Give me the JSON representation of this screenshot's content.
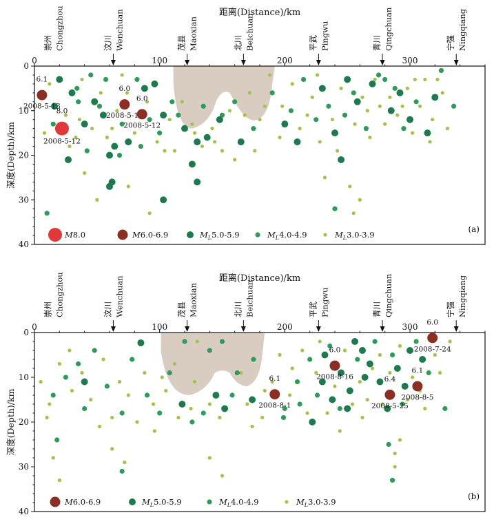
{
  "figure": {
    "colors": {
      "m8": "#e0393b",
      "m6": "#8b2e24",
      "ml5": "#1e7a4e",
      "ml4": "#2f9a5a",
      "ml3": "#a3c24c",
      "shade": "#d9cdc1",
      "axis": "#111111"
    }
  },
  "chart_data": [
    {
      "id": "a",
      "type": "scatter",
      "panel_label": "(a)",
      "title": "距离(Distance)/km",
      "xlabel": "距离(Distance)/km",
      "ylabel": "深度(Depth)/km",
      "xlim": [
        0,
        360
      ],
      "ylim": [
        0,
        40
      ],
      "y_inverted": true,
      "x_ticks": [
        0,
        100,
        200,
        300
      ],
      "y_ticks": [
        0,
        10,
        20,
        30,
        40
      ],
      "places": [
        {
          "zh": "崇州",
          "en": "Chongzhou",
          "x": 15,
          "arrow": false
        },
        {
          "zh": "汶川",
          "en": "Wenchuan",
          "x": 63,
          "arrow": true
        },
        {
          "zh": "茂县",
          "en": "Maoxian",
          "x": 122,
          "arrow": true
        },
        {
          "zh": "北川",
          "en": "Beichuan",
          "x": 167,
          "arrow": true
        },
        {
          "zh": "平武",
          "en": "Pingwu",
          "x": 227,
          "arrow": true
        },
        {
          "zh": "青川",
          "en": "Qingchuan",
          "x": 278,
          "arrow": true
        },
        {
          "zh": "宁强",
          "en": "Ningqiang",
          "x": 337,
          "arrow": true
        }
      ],
      "legend": [
        {
          "key": "m8",
          "label": "M8.0"
        },
        {
          "key": "m6",
          "label": "M6.0-6.9"
        },
        {
          "key": "ml5",
          "label": "ML5.0-5.9"
        },
        {
          "key": "ml4",
          "label": "ML4.0-4.9"
        },
        {
          "key": "ml3",
          "label": "ML3.0-3.9"
        }
      ],
      "large_events": [
        {
          "class": "m8",
          "x": 22,
          "y": 14,
          "mag": "8.0",
          "date": "2008-5-12"
        },
        {
          "class": "m6",
          "x": 6,
          "y": 6.5,
          "mag": "6.1",
          "date": "2008-5-13"
        },
        {
          "class": "m6",
          "x": 72,
          "y": 8.6,
          "mag": "6.0",
          "date": "2008-5-12"
        },
        {
          "class": "m6",
          "x": 86,
          "y": 10.8,
          "mag": "6.0",
          "date": "2008-5-12"
        }
      ],
      "ml5_events": [
        [
          16,
          9
        ],
        [
          20,
          3
        ],
        [
          30,
          6
        ],
        [
          40,
          13
        ],
        [
          48,
          8
        ],
        [
          55,
          11
        ],
        [
          60,
          20
        ],
        [
          64,
          18
        ],
        [
          96,
          4
        ],
        [
          103,
          11
        ],
        [
          120,
          14
        ],
        [
          130,
          17
        ],
        [
          138,
          16
        ],
        [
          148,
          12
        ],
        [
          165,
          17
        ],
        [
          230,
          5
        ],
        [
          240,
          15
        ],
        [
          250,
          3
        ],
        [
          258,
          8
        ],
        [
          270,
          4
        ],
        [
          285,
          10
        ],
        [
          300,
          12
        ],
        [
          314,
          15
        ],
        [
          320,
          7
        ],
        [
          27,
          21
        ],
        [
          62,
          26
        ],
        [
          60,
          27
        ],
        [
          130,
          26
        ],
        [
          126,
          22
        ],
        [
          103,
          30
        ],
        [
          75,
          17
        ],
        [
          88,
          5
        ],
        [
          245,
          21
        ],
        [
          200,
          13
        ],
        [
          210,
          17
        ],
        [
          292,
          6
        ]
      ],
      "ml4_events": [
        [
          15,
          13
        ],
        [
          35,
          8
        ],
        [
          45,
          2
        ],
        [
          52,
          9
        ],
        [
          70,
          13
        ],
        [
          82,
          3
        ],
        [
          92,
          12
        ],
        [
          110,
          8
        ],
        [
          135,
          9
        ],
        [
          150,
          11
        ],
        [
          160,
          8
        ],
        [
          175,
          14
        ],
        [
          190,
          6
        ],
        [
          205,
          10
        ],
        [
          215,
          3
        ],
        [
          225,
          12
        ],
        [
          235,
          9
        ],
        [
          248,
          11
        ],
        [
          255,
          6
        ],
        [
          265,
          14
        ],
        [
          275,
          2
        ],
        [
          288,
          5
        ],
        [
          295,
          14
        ],
        [
          305,
          8
        ],
        [
          325,
          1
        ],
        [
          335,
          9
        ],
        [
          10,
          33
        ],
        [
          68,
          20
        ],
        [
          240,
          32
        ],
        [
          280,
          3
        ],
        [
          42,
          19
        ],
        [
          100,
          15
        ],
        [
          34,
          5
        ],
        [
          57,
          3
        ],
        [
          85,
          18
        ],
        [
          115,
          11
        ]
      ],
      "ml3_events": [
        [
          8,
          15
        ],
        [
          12,
          4
        ],
        [
          25,
          11
        ],
        [
          33,
          16
        ],
        [
          38,
          3
        ],
        [
          46,
          14
        ],
        [
          53,
          6
        ],
        [
          58,
          16
        ],
        [
          66,
          10
        ],
        [
          74,
          6
        ],
        [
          80,
          15
        ],
        [
          90,
          8
        ],
        [
          98,
          17
        ],
        [
          108,
          12
        ],
        [
          112,
          19
        ],
        [
          118,
          8
        ],
        [
          126,
          13
        ],
        [
          134,
          18
        ],
        [
          142,
          14
        ],
        [
          150,
          19
        ],
        [
          156,
          10
        ],
        [
          172,
          6
        ],
        [
          180,
          12
        ],
        [
          188,
          2
        ],
        [
          196,
          16
        ],
        [
          206,
          4
        ],
        [
          212,
          14
        ],
        [
          222,
          7
        ],
        [
          228,
          17
        ],
        [
          232,
          25
        ],
        [
          238,
          12
        ],
        [
          245,
          5
        ],
        [
          252,
          27
        ],
        [
          256,
          13
        ],
        [
          262,
          7
        ],
        [
          268,
          16
        ],
        [
          272,
          3
        ],
        [
          280,
          13
        ],
        [
          284,
          7
        ],
        [
          290,
          11
        ],
        [
          298,
          5
        ],
        [
          302,
          15
        ],
        [
          308,
          9
        ],
        [
          312,
          3
        ],
        [
          318,
          12
        ],
        [
          326,
          6
        ],
        [
          330,
          14
        ],
        [
          40,
          24
        ],
        [
          50,
          30
        ],
        [
          75,
          27
        ],
        [
          92,
          33
        ],
        [
          160,
          21
        ],
        [
          255,
          33
        ],
        [
          260,
          30
        ],
        [
          28,
          18
        ],
        [
          36,
          12
        ],
        [
          62,
          14
        ],
        [
          70,
          2
        ],
        [
          104,
          19
        ],
        [
          128,
          15
        ],
        [
          144,
          17
        ],
        [
          168,
          11
        ],
        [
          176,
          19
        ],
        [
          184,
          9
        ],
        [
          198,
          9
        ],
        [
          218,
          11
        ],
        [
          226,
          2
        ],
        [
          242,
          19
        ],
        [
          266,
          10
        ],
        [
          276,
          9
        ],
        [
          294,
          9
        ],
        [
          304,
          3
        ],
        [
          316,
          17
        ],
        [
          322,
          3
        ]
      ]
    },
    {
      "id": "b",
      "type": "scatter",
      "panel_label": "(b)",
      "title": "距离(Distance)/km",
      "xlabel": "距离(Distance)/km",
      "ylabel": "深度(Depth)/km",
      "xlim": [
        0,
        360
      ],
      "ylim": [
        0,
        40
      ],
      "y_inverted": true,
      "x_ticks": [
        0,
        100,
        200,
        300
      ],
      "y_ticks": [
        0,
        10,
        20,
        30,
        40
      ],
      "places": [
        {
          "zh": "崇州",
          "en": "Chongzhou",
          "x": 15,
          "arrow": false
        },
        {
          "zh": "汶川",
          "en": "Wenchuan",
          "x": 63,
          "arrow": true
        },
        {
          "zh": "茂县",
          "en": "Maoxian",
          "x": 122,
          "arrow": true
        },
        {
          "zh": "北川",
          "en": "Beichuan",
          "x": 167,
          "arrow": true
        },
        {
          "zh": "平武",
          "en": "Pingwu",
          "x": 227,
          "arrow": true
        },
        {
          "zh": "青川",
          "en": "Qingchuan",
          "x": 278,
          "arrow": true
        },
        {
          "zh": "宁强",
          "en": "Ningqiang",
          "x": 337,
          "arrow": true
        }
      ],
      "legend": [
        {
          "key": "m6",
          "label": "M6.0-6.9"
        },
        {
          "key": "ml5",
          "label": "ML5.0-5.9"
        },
        {
          "key": "ml4",
          "label": "ML4.0-4.9"
        },
        {
          "key": "ml3",
          "label": "ML3.0-3.9"
        }
      ],
      "large_events": [
        {
          "class": "m6",
          "x": 192,
          "y": 13.8,
          "mag": "6.1",
          "date": "2008-8-1"
        },
        {
          "class": "m6",
          "x": 240,
          "y": 7.4,
          "mag": "6.0",
          "date": "2008-8-16"
        },
        {
          "class": "m6",
          "x": 284,
          "y": 13.9,
          "mag": "6.4",
          "date": "2008-5-25"
        },
        {
          "class": "m6",
          "x": 306,
          "y": 12,
          "mag": "6.1",
          "date": "2008-8-5"
        },
        {
          "class": "m6",
          "x": 318,
          "y": 1.2,
          "mag": "6.0",
          "date": "2008-7-24"
        }
      ],
      "ml5_events": [
        [
          85,
          2.3
        ],
        [
          230,
          11
        ],
        [
          238,
          15
        ],
        [
          245,
          9
        ],
        [
          252,
          13
        ],
        [
          262,
          4
        ],
        [
          268,
          7
        ],
        [
          276,
          11
        ],
        [
          290,
          8
        ],
        [
          300,
          4
        ],
        [
          310,
          6
        ],
        [
          250,
          17
        ],
        [
          40,
          11
        ],
        [
          145,
          14
        ],
        [
          152,
          17
        ],
        [
          232,
          5
        ],
        [
          282,
          17
        ],
        [
          296,
          12
        ],
        [
          256,
          2
        ],
        [
          222,
          20
        ],
        [
          174,
          15
        ],
        [
          118,
          16
        ],
        [
          264,
          10
        ]
      ],
      "ml4_events": [
        [
          15,
          14
        ],
        [
          25,
          10
        ],
        [
          35,
          7
        ],
        [
          48,
          4
        ],
        [
          58,
          12
        ],
        [
          70,
          18
        ],
        [
          78,
          6
        ],
        [
          90,
          14
        ],
        [
          100,
          18
        ],
        [
          108,
          9
        ],
        [
          120,
          2
        ],
        [
          126,
          20
        ],
        [
          135,
          18
        ],
        [
          158,
          14
        ],
        [
          162,
          9
        ],
        [
          175,
          6
        ],
        [
          200,
          17
        ],
        [
          210,
          11
        ],
        [
          220,
          6
        ],
        [
          226,
          14
        ],
        [
          236,
          3
        ],
        [
          244,
          17
        ],
        [
          258,
          6
        ],
        [
          272,
          2
        ],
        [
          286,
          5
        ],
        [
          294,
          16
        ],
        [
          305,
          2
        ],
        [
          315,
          9
        ],
        [
          328,
          17
        ],
        [
          283,
          25
        ],
        [
          286,
          33
        ],
        [
          70,
          31
        ],
        [
          18,
          24
        ],
        [
          40,
          17
        ],
        [
          140,
          4
        ],
        [
          150,
          2
        ],
        [
          199,
          19
        ],
        [
          212,
          16
        ]
      ],
      "ml3_events": [
        [
          5,
          11
        ],
        [
          12,
          16
        ],
        [
          20,
          7
        ],
        [
          30,
          13
        ],
        [
          38,
          9
        ],
        [
          45,
          15
        ],
        [
          55,
          6
        ],
        [
          62,
          19
        ],
        [
          68,
          11
        ],
        [
          75,
          14
        ],
        [
          82,
          20
        ],
        [
          95,
          16
        ],
        [
          105,
          13
        ],
        [
          115,
          19
        ],
        [
          125,
          17
        ],
        [
          130,
          2
        ],
        [
          140,
          16
        ],
        [
          148,
          19
        ],
        [
          165,
          9
        ],
        [
          170,
          16
        ],
        [
          182,
          19
        ],
        [
          190,
          11
        ],
        [
          196,
          5
        ],
        [
          204,
          14
        ],
        [
          214,
          4
        ],
        [
          218,
          18
        ],
        [
          225,
          9
        ],
        [
          234,
          18
        ],
        [
          240,
          12
        ],
        [
          248,
          4
        ],
        [
          254,
          16
        ],
        [
          260,
          11
        ],
        [
          266,
          15
        ],
        [
          270,
          8
        ],
        [
          278,
          16
        ],
        [
          284,
          9
        ],
        [
          288,
          27
        ],
        [
          292,
          3
        ],
        [
          298,
          15
        ],
        [
          302,
          10
        ],
        [
          308,
          13
        ],
        [
          312,
          17
        ],
        [
          320,
          5
        ],
        [
          324,
          9
        ],
        [
          332,
          2
        ],
        [
          15,
          28
        ],
        [
          20,
          33
        ],
        [
          62,
          26
        ],
        [
          72,
          29
        ],
        [
          140,
          28
        ],
        [
          150,
          32
        ],
        [
          288,
          30
        ],
        [
          292,
          24
        ],
        [
          96,
          22
        ],
        [
          102,
          10
        ],
        [
          112,
          7
        ],
        [
          128,
          11
        ],
        [
          174,
          21
        ],
        [
          184,
          13
        ],
        [
          206,
          8
        ],
        [
          228,
          2
        ],
        [
          244,
          22
        ],
        [
          262,
          19
        ],
        [
          276,
          5
        ],
        [
          10,
          19
        ],
        [
          28,
          4
        ],
        [
          52,
          21
        ],
        [
          88,
          9
        ]
      ]
    }
  ]
}
